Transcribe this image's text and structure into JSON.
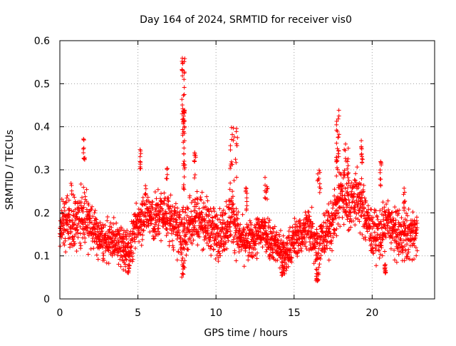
{
  "chart_data": {
    "type": "scatter",
    "title": "Day 164 of 2024, SRMTID for receiver vis0",
    "xlabel": "GPS time / hours",
    "ylabel": "SRMTID / TECUs",
    "xlim": [
      0,
      24
    ],
    "ylim": [
      0,
      0.6
    ],
    "xticks": [
      0,
      5,
      10,
      15,
      20
    ],
    "xtick_labels": [
      "0",
      "5",
      "10",
      "15",
      "20"
    ],
    "yticks": [
      0,
      0.1,
      0.2,
      0.3,
      0.4,
      0.5,
      0.6
    ],
    "ytick_labels": [
      "0",
      "0.1",
      "0.2",
      "0.3",
      "0.4",
      "0.5",
      "0.6"
    ],
    "grid": true,
    "marker": "plus",
    "color": "#ff0000",
    "series": [
      {
        "name": "vis0",
        "x_range": [
          0,
          22.9
        ],
        "envelope": [
          [
            0.0,
            0.16,
            0.05
          ],
          [
            0.5,
            0.17,
            0.06
          ],
          [
            1.0,
            0.18,
            0.06
          ],
          [
            1.5,
            0.2,
            0.06
          ],
          [
            2.0,
            0.17,
            0.05
          ],
          [
            2.5,
            0.14,
            0.04
          ],
          [
            3.0,
            0.13,
            0.04
          ],
          [
            3.5,
            0.14,
            0.04
          ],
          [
            4.0,
            0.12,
            0.04
          ],
          [
            4.5,
            0.12,
            0.04
          ],
          [
            5.0,
            0.18,
            0.05
          ],
          [
            5.5,
            0.21,
            0.05
          ],
          [
            6.0,
            0.18,
            0.05
          ],
          [
            6.5,
            0.2,
            0.05
          ],
          [
            7.0,
            0.19,
            0.05
          ],
          [
            7.5,
            0.16,
            0.05
          ],
          [
            8.0,
            0.15,
            0.06
          ],
          [
            8.5,
            0.19,
            0.06
          ],
          [
            9.0,
            0.19,
            0.05
          ],
          [
            9.5,
            0.17,
            0.05
          ],
          [
            10.0,
            0.15,
            0.05
          ],
          [
            10.5,
            0.16,
            0.05
          ],
          [
            11.0,
            0.2,
            0.06
          ],
          [
            11.5,
            0.14,
            0.04
          ],
          [
            12.0,
            0.13,
            0.04
          ],
          [
            12.5,
            0.14,
            0.04
          ],
          [
            13.0,
            0.16,
            0.05
          ],
          [
            13.5,
            0.14,
            0.04
          ],
          [
            14.0,
            0.12,
            0.04
          ],
          [
            14.5,
            0.1,
            0.04
          ],
          [
            15.0,
            0.14,
            0.04
          ],
          [
            15.5,
            0.15,
            0.04
          ],
          [
            16.0,
            0.17,
            0.05
          ],
          [
            16.5,
            0.12,
            0.05
          ],
          [
            17.0,
            0.15,
            0.05
          ],
          [
            17.5,
            0.18,
            0.05
          ],
          [
            18.0,
            0.25,
            0.07
          ],
          [
            18.5,
            0.22,
            0.06
          ],
          [
            19.0,
            0.24,
            0.06
          ],
          [
            19.5,
            0.2,
            0.05
          ],
          [
            20.0,
            0.15,
            0.05
          ],
          [
            20.5,
            0.15,
            0.05
          ],
          [
            21.0,
            0.18,
            0.05
          ],
          [
            21.5,
            0.15,
            0.05
          ],
          [
            22.0,
            0.14,
            0.05
          ],
          [
            22.5,
            0.15,
            0.05
          ],
          [
            22.9,
            0.16,
            0.05
          ]
        ],
        "spikes": [
          [
            1.5,
            1.6,
            0.32,
            0.39
          ],
          [
            5.1,
            5.2,
            0.29,
            0.35
          ],
          [
            6.8,
            6.9,
            0.27,
            0.31
          ],
          [
            7.8,
            8.0,
            0.38,
            0.57
          ],
          [
            7.9,
            8.0,
            0.25,
            0.44
          ],
          [
            8.6,
            8.7,
            0.28,
            0.34
          ],
          [
            10.9,
            11.4,
            0.25,
            0.4
          ],
          [
            11.9,
            12.0,
            0.2,
            0.26
          ],
          [
            13.1,
            13.3,
            0.22,
            0.29
          ],
          [
            16.5,
            16.7,
            0.24,
            0.3
          ],
          [
            17.7,
            17.9,
            0.3,
            0.45
          ],
          [
            18.2,
            18.5,
            0.28,
            0.36
          ],
          [
            19.3,
            19.4,
            0.3,
            0.37
          ],
          [
            20.5,
            20.6,
            0.26,
            0.32
          ],
          [
            22.0,
            22.1,
            0.2,
            0.26
          ]
        ],
        "dips": [
          [
            7.8,
            8.0,
            0.05,
            0.09
          ],
          [
            14.2,
            14.4,
            0.05,
            0.08
          ],
          [
            16.4,
            16.6,
            0.04,
            0.07
          ],
          [
            20.8,
            20.9,
            0.06,
            0.08
          ],
          [
            4.0,
            4.5,
            0.06,
            0.09
          ]
        ],
        "count": 2600,
        "seed": 164
      }
    ]
  }
}
